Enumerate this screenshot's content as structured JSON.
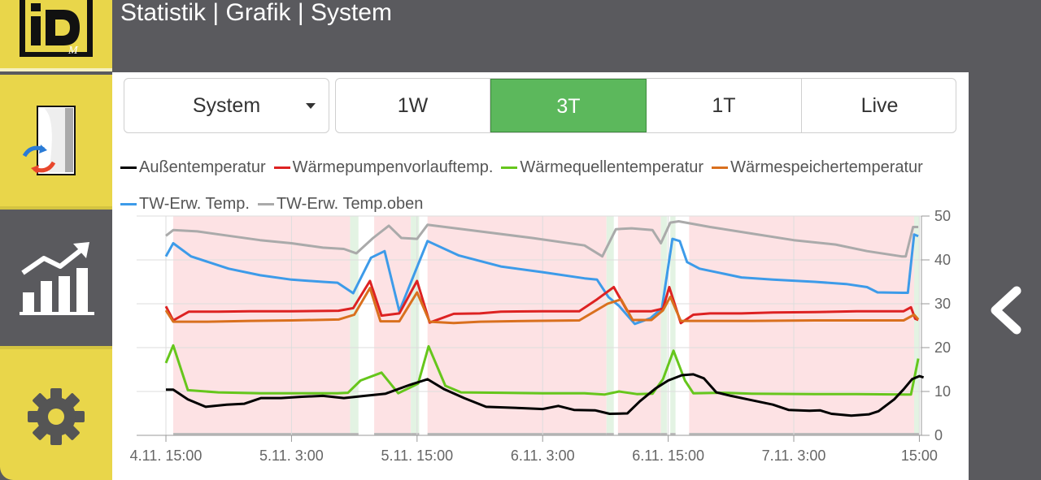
{
  "header": {
    "title": "Statistik | Grafik | System"
  },
  "sidebar": {
    "logo_text": "iDM",
    "items": [
      {
        "name": "system",
        "icon": "heat-pump-icon"
      },
      {
        "name": "statistics",
        "icon": "chart-growth-icon"
      },
      {
        "name": "settings",
        "icon": "gear-icon"
      }
    ]
  },
  "toolbar": {
    "system_select": {
      "value": "System"
    },
    "ranges": [
      "1W",
      "3T",
      "1T",
      "Live"
    ],
    "active_range": "3T"
  },
  "colors": {
    "accent_green": "#5cb85c",
    "sidebar_yellow": "#e9d64a",
    "background_gray": "#5a5a5e"
  },
  "chart_data": {
    "type": "line",
    "legend": [
      {
        "name": "Außentemperatur",
        "color": "#000000"
      },
      {
        "name": "Wärmepumpenvorlauftemp.",
        "color": "#dd2222"
      },
      {
        "name": "Wärmequellentemperatur",
        "color": "#66c61c"
      },
      {
        "name": "Wärmespeichertemperatur",
        "color": "#d9701e"
      },
      {
        "name": "TW-Erw. Temp.",
        "color": "#3d9be9"
      },
      {
        "name": "TW-Erw. Temp.oben",
        "color": "#aaaaaa"
      }
    ],
    "x_ticks": [
      {
        "t": 0,
        "label": "4.11. 15:00"
      },
      {
        "t": 12,
        "label": "5.11. 3:00"
      },
      {
        "t": 24,
        "label": "5.11. 15:00"
      },
      {
        "t": 36,
        "label": "6.11. 3:00"
      },
      {
        "t": 48,
        "label": "6.11. 15:00"
      },
      {
        "t": 60,
        "label": "7.11. 3:00"
      },
      {
        "t": 72,
        "label": "15:00"
      }
    ],
    "xlim": [
      -2.8,
      72.2
    ],
    "ylim": [
      0,
      50
    ],
    "y_ticks": [
      0,
      10,
      20,
      30,
      40,
      50
    ],
    "bands": [
      {
        "from": 0.7,
        "to": 17.6,
        "state": "heating"
      },
      {
        "from": 17.6,
        "to": 18.4,
        "state": "water"
      },
      {
        "from": 19.9,
        "to": 23.4,
        "state": "heating"
      },
      {
        "from": 23.4,
        "to": 24.2,
        "state": "water"
      },
      {
        "from": 25.0,
        "to": 42.1,
        "state": "heating"
      },
      {
        "from": 42.1,
        "to": 42.8,
        "state": "water"
      },
      {
        "from": 43.2,
        "to": 47.3,
        "state": "heating"
      },
      {
        "from": 47.3,
        "to": 47.9,
        "state": "water"
      },
      {
        "from": 48.2,
        "to": 48.7,
        "state": "water"
      },
      {
        "from": 50.0,
        "to": 71.5,
        "state": "heating"
      },
      {
        "from": 71.5,
        "to": 72.0,
        "state": "water"
      }
    ],
    "band_colors": {
      "heating": "#fde2e4",
      "water": "#e3f3e3"
    },
    "series": [
      {
        "name": "TW-Erw. Temp.oben",
        "color": "#aaaaaa",
        "points": [
          [
            0,
            45.5
          ],
          [
            0.7,
            46.8
          ],
          [
            3,
            46.5
          ],
          [
            6,
            45.5
          ],
          [
            9,
            44.5
          ],
          [
            12,
            43.8
          ],
          [
            15,
            42.8
          ],
          [
            17,
            42.5
          ],
          [
            18.2,
            41.5
          ],
          [
            19.8,
            45
          ],
          [
            21.3,
            47.8
          ],
          [
            22.5,
            45
          ],
          [
            24,
            44.8
          ],
          [
            25,
            48
          ],
          [
            30,
            46.5
          ],
          [
            35,
            45
          ],
          [
            40,
            43.3
          ],
          [
            41.7,
            40.8
          ],
          [
            43,
            47
          ],
          [
            44.5,
            47.2
          ],
          [
            46.5,
            46.8
          ],
          [
            47.3,
            43.8
          ],
          [
            48.2,
            48.5
          ],
          [
            49,
            48.8
          ],
          [
            52,
            47.5
          ],
          [
            56,
            46
          ],
          [
            60,
            44.5
          ],
          [
            64,
            43.5
          ],
          [
            67,
            42
          ],
          [
            70.3,
            40.8
          ],
          [
            70.7,
            40.8
          ],
          [
            71.4,
            47.5
          ],
          [
            71.9,
            47.5
          ]
        ]
      },
      {
        "name": "TW-Erw. Temp.",
        "color": "#3d9be9",
        "points": [
          [
            0,
            40.8
          ],
          [
            0.7,
            43.8
          ],
          [
            2.4,
            40.8
          ],
          [
            6,
            38
          ],
          [
            9,
            36.5
          ],
          [
            12,
            35.5
          ],
          [
            15,
            35
          ],
          [
            16.4,
            34.8
          ],
          [
            17.9,
            32.4
          ],
          [
            19.6,
            40.5
          ],
          [
            20.9,
            42
          ],
          [
            22.3,
            28.3
          ],
          [
            23.8,
            37.2
          ],
          [
            25,
            44.3
          ],
          [
            28,
            41
          ],
          [
            32,
            38.5
          ],
          [
            36,
            37.2
          ],
          [
            40,
            35.8
          ],
          [
            41.2,
            35.5
          ],
          [
            42.3,
            31.5
          ],
          [
            43.3,
            29.5
          ],
          [
            44.8,
            25.4
          ],
          [
            46.3,
            26.7
          ],
          [
            47.4,
            29
          ],
          [
            48.4,
            44.8
          ],
          [
            49.1,
            44.3
          ],
          [
            49.8,
            39.5
          ],
          [
            51,
            38
          ],
          [
            53,
            37
          ],
          [
            55,
            36
          ],
          [
            58,
            35.5
          ],
          [
            62,
            35
          ],
          [
            65,
            34.5
          ],
          [
            67,
            33.8
          ],
          [
            68,
            32.6
          ],
          [
            70.4,
            32.5
          ],
          [
            70.9,
            32.5
          ],
          [
            71.5,
            45.8
          ],
          [
            71.9,
            45.4
          ]
        ]
      },
      {
        "name": "Wärmepumpenvorlauftemp.",
        "color": "#dd2222",
        "points": [
          [
            0,
            29.4
          ],
          [
            0.7,
            26.2
          ],
          [
            2.2,
            28.2
          ],
          [
            5,
            28.2
          ],
          [
            8,
            28.3
          ],
          [
            12,
            28.3
          ],
          [
            16.5,
            28.4
          ],
          [
            17.9,
            29
          ],
          [
            19.5,
            35.2
          ],
          [
            20.6,
            27.3
          ],
          [
            22.3,
            27.8
          ],
          [
            24,
            35.2
          ],
          [
            25.2,
            25.7
          ],
          [
            27.5,
            27.7
          ],
          [
            30,
            27.8
          ],
          [
            32,
            28.2
          ],
          [
            36,
            28.3
          ],
          [
            39.5,
            28.3
          ],
          [
            41.2,
            31
          ],
          [
            42.8,
            33.8
          ],
          [
            44.1,
            28.3
          ],
          [
            46.4,
            28.3
          ],
          [
            47.5,
            28.9
          ],
          [
            48.1,
            33.8
          ],
          [
            49.2,
            25.6
          ],
          [
            50.4,
            27.5
          ],
          [
            52,
            27.8
          ],
          [
            55,
            27.8
          ],
          [
            58,
            28
          ],
          [
            62,
            28.1
          ],
          [
            66,
            28.3
          ],
          [
            70.5,
            28.3
          ],
          [
            71.2,
            29.2
          ],
          [
            71.6,
            26.6
          ],
          [
            71.9,
            26.3
          ]
        ]
      },
      {
        "name": "Wärmespeichertemperatur",
        "color": "#d9701e",
        "points": [
          [
            0,
            28.5
          ],
          [
            0.7,
            25.9
          ],
          [
            4,
            25.9
          ],
          [
            8,
            26.1
          ],
          [
            12,
            26.2
          ],
          [
            16.5,
            26.4
          ],
          [
            18,
            27.5
          ],
          [
            19.5,
            33.6
          ],
          [
            20.5,
            26
          ],
          [
            22.3,
            26
          ],
          [
            24,
            32.6
          ],
          [
            25.2,
            25.9
          ],
          [
            27.5,
            25.6
          ],
          [
            30,
            25.9
          ],
          [
            35,
            26.1
          ],
          [
            39.5,
            26.2
          ],
          [
            42.2,
            30
          ],
          [
            43.5,
            31
          ],
          [
            44.6,
            26.3
          ],
          [
            46.4,
            26.3
          ],
          [
            47.5,
            28.5
          ],
          [
            48.2,
            31.6
          ],
          [
            49.2,
            26.1
          ],
          [
            52,
            26.1
          ],
          [
            56,
            26.1
          ],
          [
            62,
            26.2
          ],
          [
            67,
            26.2
          ],
          [
            70.5,
            26.2
          ],
          [
            71.5,
            27.5
          ],
          [
            71.9,
            26.4
          ]
        ]
      },
      {
        "name": "Wärmequellentemperatur",
        "color": "#66c61c",
        "points": [
          [
            0,
            16.5
          ],
          [
            0.7,
            20.5
          ],
          [
            2.1,
            10.3
          ],
          [
            5,
            9.8
          ],
          [
            9,
            9.6
          ],
          [
            12,
            9.6
          ],
          [
            16.4,
            9.6
          ],
          [
            17.4,
            9.7
          ],
          [
            18.6,
            12.5
          ],
          [
            20.6,
            14.3
          ],
          [
            22.2,
            9.6
          ],
          [
            24.1,
            11.8
          ],
          [
            25.1,
            20.3
          ],
          [
            26.7,
            11.3
          ],
          [
            28.2,
            9.8
          ],
          [
            32,
            9.7
          ],
          [
            36,
            9.6
          ],
          [
            40,
            9.6
          ],
          [
            41.9,
            9.3
          ],
          [
            43.3,
            10
          ],
          [
            45,
            9.4
          ],
          [
            46.5,
            9.5
          ],
          [
            47.5,
            12.8
          ],
          [
            48.5,
            19.3
          ],
          [
            49.6,
            12.5
          ],
          [
            50.4,
            9.6
          ],
          [
            53,
            9.7
          ],
          [
            56,
            9.5
          ],
          [
            62,
            9.4
          ],
          [
            66,
            9.4
          ],
          [
            70.6,
            9.3
          ],
          [
            71.2,
            9.3
          ],
          [
            71.6,
            14
          ],
          [
            71.9,
            17.5
          ]
        ]
      },
      {
        "name": "Außentemperatur",
        "color": "#000000",
        "points": [
          [
            0,
            10.4
          ],
          [
            0.7,
            10.4
          ],
          [
            2.1,
            8.2
          ],
          [
            3.8,
            6.5
          ],
          [
            5.8,
            7
          ],
          [
            7.5,
            7.2
          ],
          [
            9.1,
            8.5
          ],
          [
            11,
            8.5
          ],
          [
            13,
            8.8
          ],
          [
            15,
            9
          ],
          [
            17,
            8.5
          ],
          [
            19,
            9
          ],
          [
            21,
            9.5
          ],
          [
            23.3,
            11.5
          ],
          [
            25,
            12.8
          ],
          [
            26.6,
            10.5
          ],
          [
            28.5,
            8.5
          ],
          [
            30.6,
            6.5
          ],
          [
            34,
            6.2
          ],
          [
            36,
            6
          ],
          [
            37.5,
            6.7
          ],
          [
            39,
            5.8
          ],
          [
            41,
            5.7
          ],
          [
            42.4,
            4.9
          ],
          [
            44.1,
            5
          ],
          [
            45.3,
            7.8
          ],
          [
            46.8,
            10.7
          ],
          [
            48,
            12.5
          ],
          [
            49.3,
            13.7
          ],
          [
            50.4,
            13.9
          ],
          [
            51.4,
            13
          ],
          [
            52.6,
            9.8
          ],
          [
            54,
            9
          ],
          [
            56,
            8
          ],
          [
            58,
            7
          ],
          [
            59.5,
            5.8
          ],
          [
            61.5,
            5.6
          ],
          [
            62.5,
            5.7
          ],
          [
            63.6,
            4.9
          ],
          [
            65.5,
            4.5
          ],
          [
            67.2,
            4.8
          ],
          [
            68.1,
            5.5
          ],
          [
            69.6,
            8.2
          ],
          [
            70.5,
            10.5
          ],
          [
            71.3,
            12.8
          ],
          [
            72,
            13.5
          ],
          [
            72.4,
            13.2
          ]
        ]
      }
    ]
  }
}
